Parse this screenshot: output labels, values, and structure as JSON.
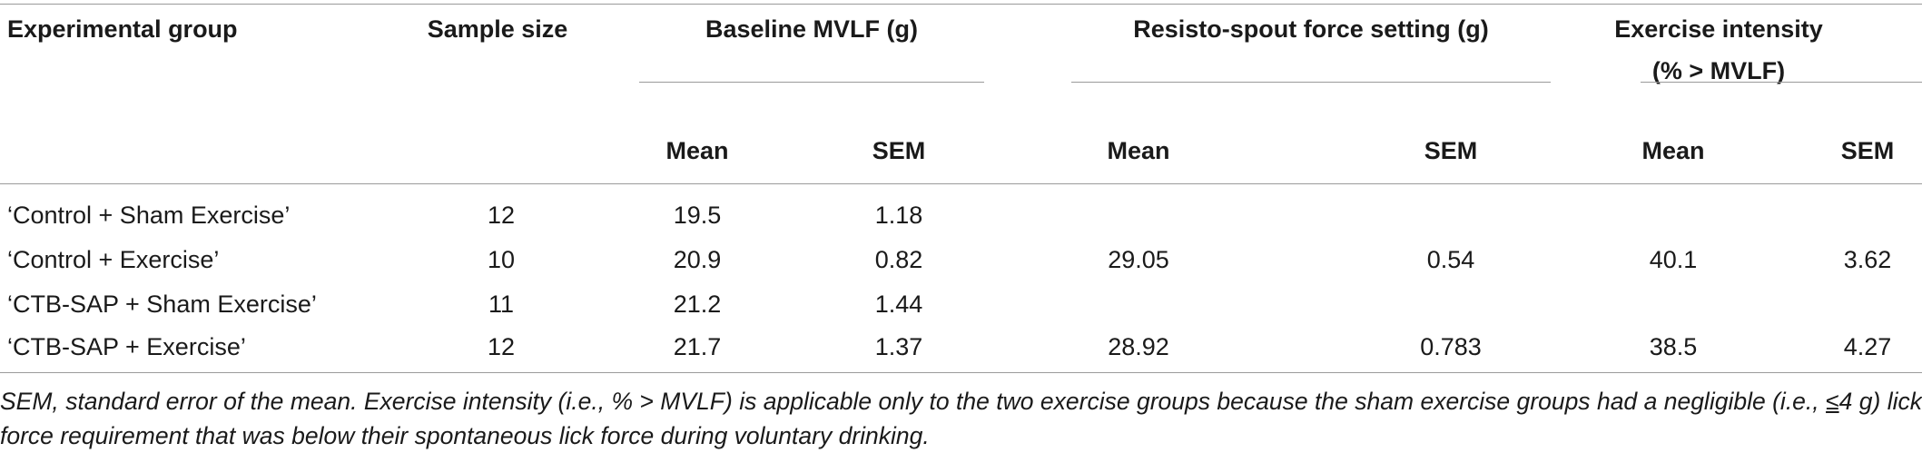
{
  "table": {
    "headers": {
      "group": "Experimental group",
      "sample_size": "Sample size",
      "baseline": "Baseline MVLF (g)",
      "resisto": "Resisto-spout force setting (g)",
      "intensity_line1": "Exercise intensity",
      "intensity_line2": "(% > MVLF)",
      "mean": "Mean",
      "sem": "SEM"
    },
    "rows": [
      {
        "group": "‘Control + Sham Exercise’",
        "n": "12",
        "base_mean": "19.5",
        "base_sem": "1.18",
        "res_mean": "",
        "res_sem": "",
        "int_mean": "",
        "int_sem": ""
      },
      {
        "group": "‘Control + Exercise’",
        "n": "10",
        "base_mean": "20.9",
        "base_sem": "0.82",
        "res_mean": "29.05",
        "res_sem": "0.54",
        "int_mean": "40.1",
        "int_sem": "3.62"
      },
      {
        "group": "‘CTB-SAP + Sham Exercise’",
        "n": "11",
        "base_mean": "21.2",
        "base_sem": "1.44",
        "res_mean": "",
        "res_sem": "",
        "int_mean": "",
        "int_sem": ""
      },
      {
        "group": "‘CTB-SAP + Exercise’",
        "n": "12",
        "base_mean": "21.7",
        "base_sem": "1.37",
        "res_mean": "28.92",
        "res_sem": "0.783",
        "int_mean": "38.5",
        "int_sem": "4.27"
      }
    ]
  },
  "footnote": {
    "part1": "SEM, standard error of the mean. Exercise intensity (i.e., % > MVLF) is applicable only to the two exercise groups because the sham exercise groups had a negligible (i.e., ",
    "le_symbol": "≤",
    "part2": "4 g) lick force requirement that was below their spontaneous lick force during voluntary drinking."
  }
}
